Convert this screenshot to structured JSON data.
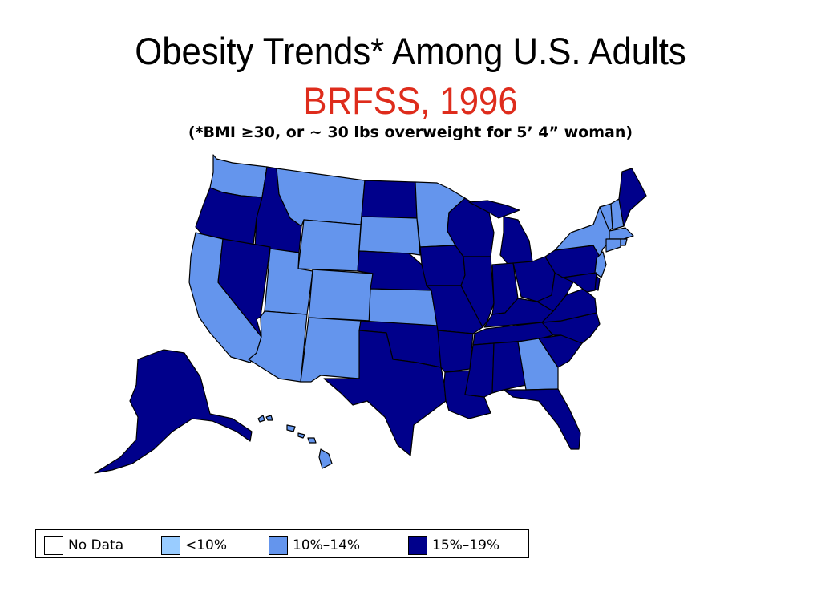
{
  "title": "Obesity Trends* Among U.S. Adults",
  "subtitle": "BRFSS, 1996",
  "note": "(*BMI ≥30, or ~ 30 lbs overweight for 5’ 4” woman)",
  "colors": {
    "subtitle": "#de2c1c",
    "no_data": "#ffffff",
    "lt10": "#99ccff",
    "c10_14": "#6495ed",
    "c15_19": "#00008b"
  },
  "legend": [
    {
      "key": "no_data",
      "label": "No Data"
    },
    {
      "key": "lt10",
      "label": "<10%"
    },
    {
      "key": "c10_14",
      "label": "10%–14%"
    },
    {
      "key": "c15_19",
      "label": "15%–19%"
    }
  ],
  "states": {
    "WA": "c10_14",
    "OR": "c15_19",
    "CA": "c10_14",
    "ID": "c15_19",
    "NV": "c15_19",
    "MT": "c10_14",
    "WY": "c10_14",
    "UT": "c10_14",
    "AZ": "c10_14",
    "CO": "c10_14",
    "NM": "c10_14",
    "ND": "c15_19",
    "SD": "c10_14",
    "NE": "c15_19",
    "KS": "c10_14",
    "OK": "c15_19",
    "TX": "c15_19",
    "MN": "c10_14",
    "IA": "c15_19",
    "MO": "c15_19",
    "AR": "c15_19",
    "LA": "c15_19",
    "WI": "c15_19",
    "IL": "c15_19",
    "MI": "c15_19",
    "IN": "c15_19",
    "OH": "c15_19",
    "KY": "c15_19",
    "TN": "c15_19",
    "MS": "c15_19",
    "AL": "c15_19",
    "GA": "c10_14",
    "FL": "c15_19",
    "SC": "c15_19",
    "NC": "c15_19",
    "VA": "c15_19",
    "WV": "c15_19",
    "PA": "c15_19",
    "NY": "c10_14",
    "VT": "c10_14",
    "NH": "c10_14",
    "ME": "c15_19",
    "MA": "c10_14",
    "RI": "c10_14",
    "CT": "c10_14",
    "NJ": "c10_14",
    "DE": "c15_19",
    "MD": "c15_19",
    "AK": "c15_19",
    "HI": "c10_14"
  }
}
